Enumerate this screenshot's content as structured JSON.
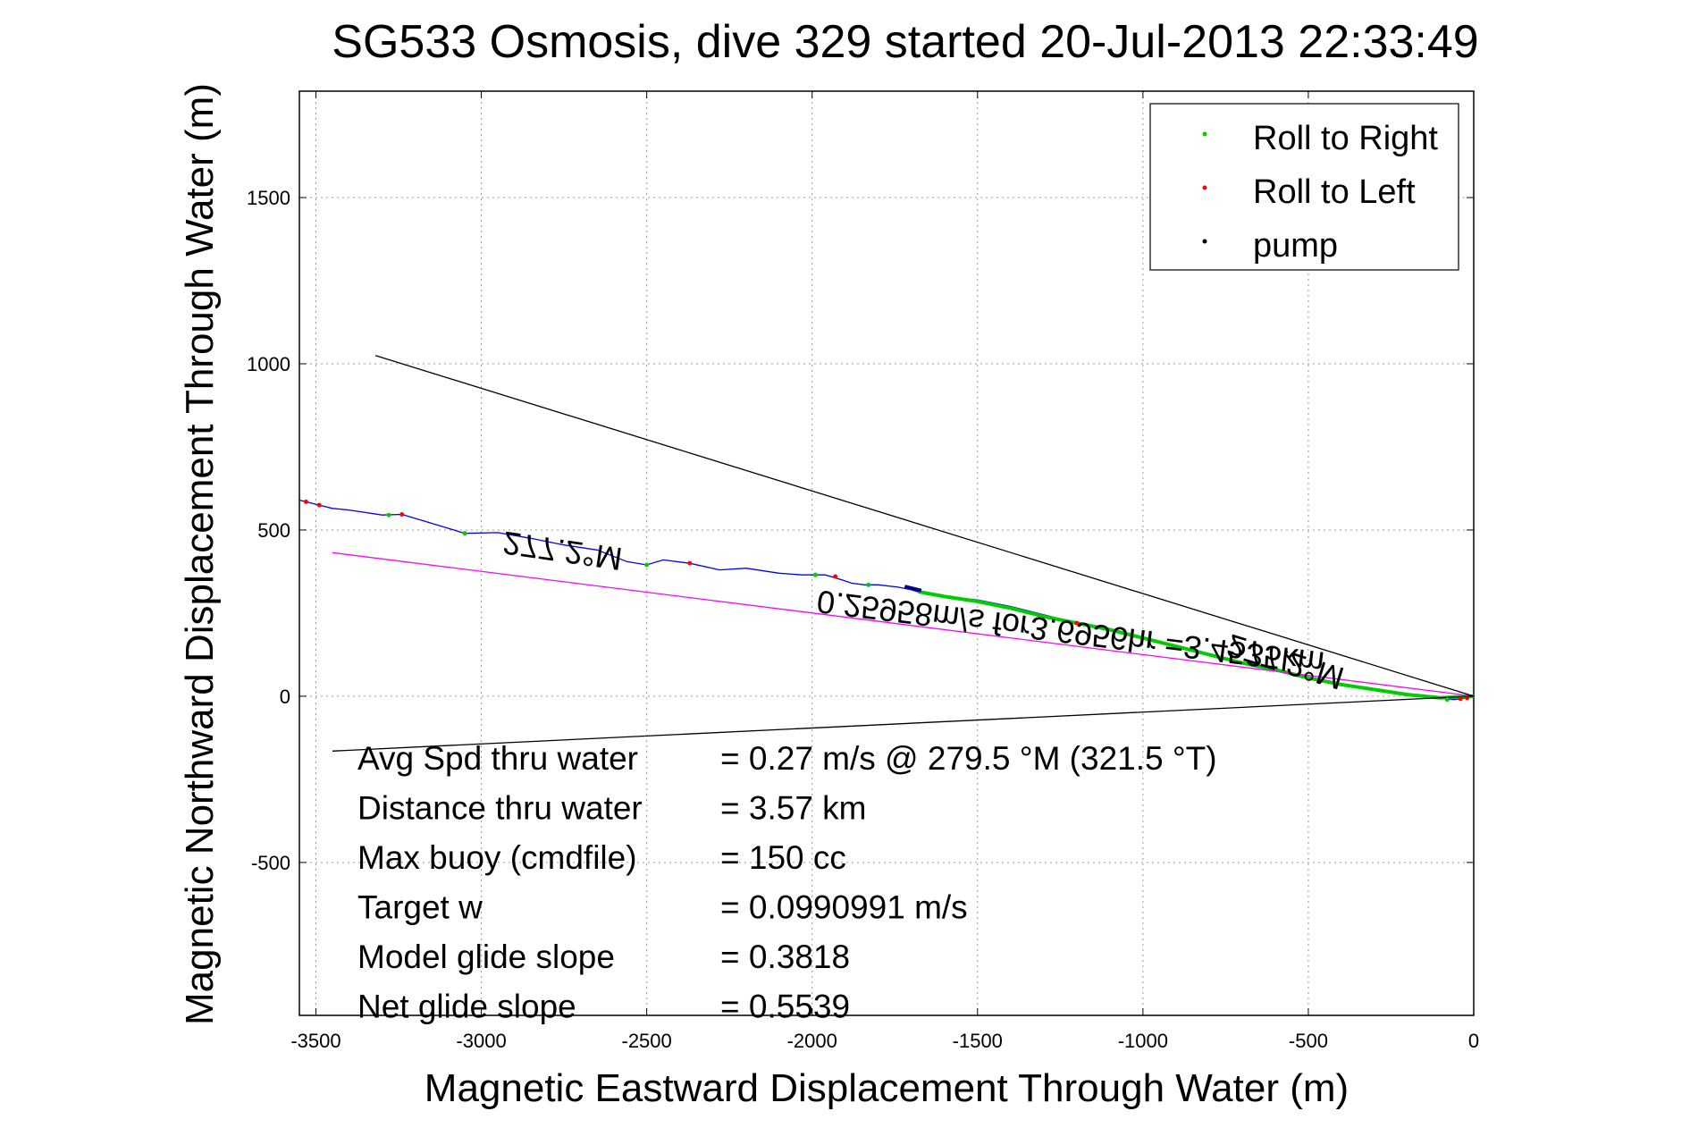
{
  "title": "SG533 Osmosis, dive 329 started 20-Jul-2013 22:33:49",
  "chart_data": {
    "type": "line",
    "title": "SG533 Osmosis, dive 329 started 20-Jul-2013 22:33:49",
    "xlabel": "Magnetic Eastward Displacement Through Water (m)",
    "ylabel": "Magnetic Northward Displacement Through Water (m)",
    "xlim": [
      -3550,
      0
    ],
    "ylim": [
      -960,
      1820
    ],
    "xticks": [
      -3500,
      -3000,
      -2500,
      -2000,
      -1500,
      -1000,
      -500,
      0
    ],
    "yticks": [
      -500,
      0,
      500,
      1000,
      1500
    ],
    "grid": true,
    "legend_position": "top-right",
    "legend": [
      {
        "label": "Roll to Right",
        "color": "#00cc00"
      },
      {
        "label": "Roll to Left",
        "color": "#ff0000"
      },
      {
        "label": "pump",
        "color": "#000000"
      }
    ],
    "series": [
      {
        "color": "#0000ff",
        "x": [
          -3550,
          -3490,
          -3450,
          -3400,
          -3300,
          -3240,
          -3150,
          -3050,
          -2950,
          -2850,
          -2750,
          -2650,
          -2560,
          -2500,
          -2450,
          -2370,
          -2280,
          -2200,
          -2100,
          -2030,
          -1960,
          -1910,
          -1880,
          -1840,
          -1800,
          -1740,
          -1700,
          -1650,
          -1500,
          -1400,
          -1300,
          -1200,
          -1100,
          -1000,
          -900,
          -800,
          -700,
          -600,
          -500,
          -400,
          -300,
          -200,
          -120,
          -60,
          -20,
          0
        ],
        "y": [
          590,
          575,
          565,
          560,
          545,
          547,
          520,
          490,
          492,
          475,
          455,
          440,
          405,
          395,
          410,
          400,
          380,
          385,
          370,
          365,
          365,
          350,
          340,
          335,
          335,
          328,
          320,
          305,
          290,
          270,
          245,
          220,
          200,
          175,
          150,
          125,
          100,
          80,
          55,
          35,
          20,
          5,
          -5,
          -10,
          -5,
          0
        ]
      },
      {
        "color": "#00cc00",
        "x": [
          -1680,
          -1600,
          -1500,
          -1400,
          -1300,
          -1200,
          -1100,
          -1000,
          -900,
          -800,
          -700,
          -600,
          -500,
          -400,
          -300,
          -200,
          -100,
          0
        ],
        "y": [
          315,
          300,
          285,
          265,
          240,
          220,
          200,
          175,
          150,
          125,
          100,
          80,
          55,
          35,
          20,
          5,
          -5,
          0
        ]
      },
      {
        "color": "#ff00ff",
        "x": [
          -3450,
          0
        ],
        "y": [
          432,
          0
        ]
      },
      {
        "color": "#000000",
        "x": [
          -3320,
          0
        ],
        "y": [
          1025,
          0
        ]
      },
      {
        "color": "#000000",
        "x": [
          -3450,
          0
        ],
        "y": [
          -165,
          0
        ]
      }
    ],
    "markers": [
      {
        "x": -3530,
        "y": 585,
        "color": "#ff0000"
      },
      {
        "x": -3490,
        "y": 575,
        "color": "#ff0000"
      },
      {
        "x": -3280,
        "y": 545,
        "color": "#00cc00"
      },
      {
        "x": -3240,
        "y": 547,
        "color": "#ff0000"
      },
      {
        "x": -3050,
        "y": 490,
        "color": "#00cc00"
      },
      {
        "x": -2500,
        "y": 395,
        "color": "#00cc00"
      },
      {
        "x": -2370,
        "y": 400,
        "color": "#ff0000"
      },
      {
        "x": -1990,
        "y": 365,
        "color": "#00cc00"
      },
      {
        "x": -1930,
        "y": 360,
        "color": "#ff0000"
      },
      {
        "x": -1830,
        "y": 335,
        "color": "#00cc00"
      },
      {
        "x": -1200,
        "y": 220,
        "color": "#ff0000"
      },
      {
        "x": -80,
        "y": -10,
        "color": "#00cc00"
      },
      {
        "x": -40,
        "y": -8,
        "color": "#ff0000"
      },
      {
        "x": -20,
        "y": -5,
        "color": "#ff0000"
      }
    ],
    "pump_segment": {
      "x": [
        -1720,
        -1670
      ],
      "y": [
        330,
        318
      ],
      "color": "#000080"
    },
    "annotations": [
      {
        "text": "277.2°M",
        "x": -2750,
        "y": 470,
        "rotate": 188.2,
        "flip": true
      },
      {
        "text": "277.2°M",
        "x": -560,
        "y": 135,
        "rotate": 197,
        "flip": true
      },
      {
        "text": "0.25958m/s for3.6956hr =3.4535km",
        "x": -1215,
        "y": 225,
        "rotate": 187,
        "flip": true
      }
    ],
    "stats": [
      {
        "label": "Avg Spd thru water",
        "value": "=  0.27 m/s @ 279.5 °M (321.5 °T)"
      },
      {
        "label": "Distance thru water",
        "value": "=  3.57 km"
      },
      {
        "label": "Max buoy (cmdfile)",
        "value": "= 150 cc"
      },
      {
        "label": "Target w",
        "value": "= 0.0990991 m/s"
      },
      {
        "label": "Model glide slope",
        "value": "= 0.3818"
      },
      {
        "label": "Net glide slope",
        "value": "= 0.5539"
      }
    ]
  }
}
